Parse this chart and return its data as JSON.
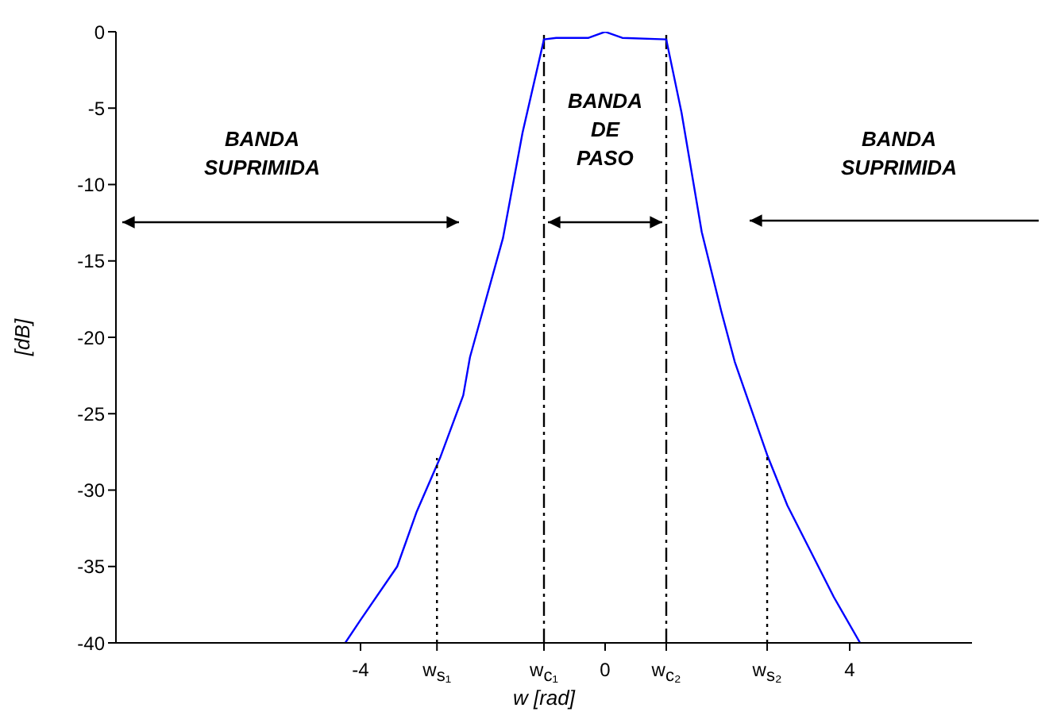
{
  "chart_data": {
    "type": "line",
    "xlabel": "w [rad]",
    "ylabel": "[dB]",
    "xlim": [
      -8,
      6
    ],
    "ylim": [
      -40,
      0
    ],
    "xticks": [
      -4,
      {
        "value": -2.75,
        "label": "w$_{s₁}$"
      },
      {
        "value": -1,
        "label": "w$_{c₁}$"
      },
      0,
      {
        "value": 1,
        "label": "w$_{c₂}$"
      },
      {
        "value": 2.65,
        "label": "w$_{s₂}$"
      },
      4
    ],
    "yticks": [
      0,
      -5,
      -10,
      -15,
      -20,
      -25,
      -30,
      -35,
      -40
    ],
    "grid": false,
    "marker": "none",
    "series": [
      {
        "color": "#0000ff",
        "line_style": "solid",
        "x": [
          -4.25,
          -4.0,
          -3.4,
          -3.08,
          -2.7,
          -2.32,
          -2.21,
          -1.67,
          -1.35,
          -1.0,
          -0.8,
          -0.27,
          0,
          0.28,
          1.0,
          1.25,
          1.58,
          1.9,
          2.12,
          2.65,
          2.98,
          3.74,
          4.17
        ],
        "values": [
          -40,
          -38.5,
          -35,
          -31.4,
          -27.9,
          -23.8,
          -21.3,
          -13.5,
          -6.6,
          -0.5,
          -0.4,
          -0.4,
          0,
          -0.4,
          -0.5,
          -5.3,
          -13.1,
          -18.3,
          -21.6,
          -27.7,
          -31,
          -37,
          -40
        ]
      },
      {
        "color": "#000000",
        "line_style": "dotted",
        "x": [
          -2.75,
          -2.75
        ],
        "values": [
          -40,
          -27.9
        ]
      },
      {
        "color": "#000000",
        "line_style": "dotted",
        "x": [
          2.65,
          2.65
        ],
        "values": [
          -40,
          -27.7
        ]
      }
    ],
    "ref_lines": [
      {
        "axis": "x",
        "value": -1,
        "color": "#000000",
        "line_style": "dashed"
      },
      {
        "axis": "x",
        "value": 1,
        "color": "#000000",
        "line_style": "dashed"
      }
    ],
    "annotations": [
      "BANDA SUPRIMIDA",
      "BANDA DE PASO",
      "BANDA SUPRIMIDA"
    ]
  }
}
